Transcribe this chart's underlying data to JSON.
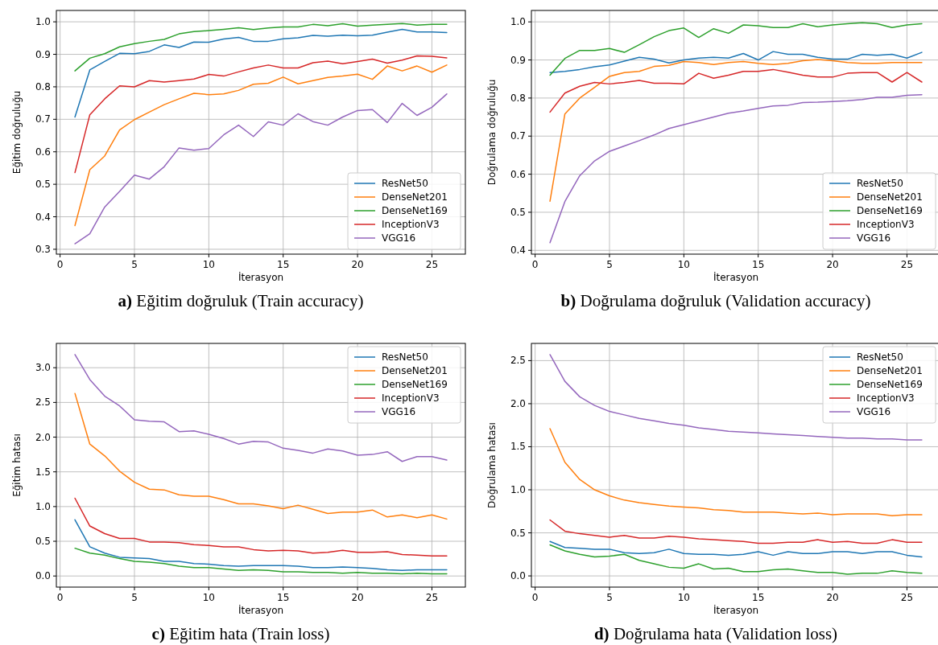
{
  "chart_data": [
    {
      "type": "line",
      "ylabel": "Eğitim doğruluğu",
      "xlabel": "İterasyon",
      "annotations": [
        "a) Eğitim doğruluk (Train accuracy)"
      ],
      "x": [
        1,
        2,
        3,
        4,
        5,
        6,
        7,
        8,
        9,
        10,
        11,
        12,
        13,
        14,
        15,
        16,
        17,
        18,
        19,
        20,
        21,
        22,
        23,
        24,
        25,
        26
      ],
      "xlim": [
        -0.25,
        27.25
      ],
      "xticks": [
        0,
        5,
        10,
        15,
        20,
        25
      ],
      "ylim": [
        0.285,
        1.035
      ],
      "yticks": [
        0.3,
        0.4,
        0.5,
        0.6,
        0.7,
        0.8,
        0.9,
        {
          "value": 1,
          "label": "1.0"
        }
      ],
      "grid": true,
      "legend": "bottom right",
      "line_style": "solid",
      "series": [
        {
          "name": "ResNet50",
          "color": "#1f77b4",
          "values": [
            0.707,
            0.852,
            0.878,
            0.903,
            0.902,
            0.909,
            0.929,
            0.921,
            0.938,
            0.937,
            0.947,
            0.952,
            0.94,
            0.94,
            0.948,
            0.951,
            0.958,
            0.956,
            0.959,
            0.957,
            0.959,
            0.968,
            0.977,
            0.969,
            0.969,
            0.967
          ]
        },
        {
          "name": "DenseNet201",
          "color": "#ff7f0e",
          "values": [
            0.373,
            0.545,
            0.587,
            0.667,
            0.699,
            0.722,
            0.745,
            0.763,
            0.78,
            0.776,
            0.778,
            0.789,
            0.808,
            0.811,
            0.83,
            0.809,
            0.819,
            0.829,
            0.833,
            0.839,
            0.823,
            0.864,
            0.849,
            0.864,
            0.845,
            0.867
          ]
        },
        {
          "name": "DenseNet169",
          "color": "#2ca02c",
          "values": [
            0.849,
            0.888,
            0.902,
            0.923,
            0.933,
            0.94,
            0.946,
            0.963,
            0.97,
            0.973,
            0.977,
            0.982,
            0.976,
            0.981,
            0.984,
            0.984,
            0.992,
            0.988,
            0.994,
            0.987,
            0.99,
            0.992,
            0.995,
            0.99,
            0.992,
            0.992
          ]
        },
        {
          "name": "InceptionV3",
          "color": "#d62728",
          "values": [
            0.536,
            0.714,
            0.763,
            0.803,
            0.8,
            0.819,
            0.815,
            0.819,
            0.824,
            0.838,
            0.833,
            0.846,
            0.858,
            0.867,
            0.858,
            0.858,
            0.874,
            0.879,
            0.871,
            0.878,
            0.885,
            0.873,
            0.882,
            0.895,
            0.894,
            0.889
          ]
        },
        {
          "name": "VGG16",
          "color": "#9467bd",
          "values": [
            0.317,
            0.348,
            0.43,
            0.478,
            0.528,
            0.516,
            0.554,
            0.612,
            0.605,
            0.61,
            0.652,
            0.682,
            0.647,
            0.692,
            0.682,
            0.717,
            0.693,
            0.682,
            0.707,
            0.727,
            0.73,
            0.69,
            0.749,
            0.712,
            0.737,
            0.778
          ]
        }
      ]
    },
    {
      "type": "line",
      "ylabel": "Doğrulama doğruluğu",
      "xlabel": "İterasyon",
      "annotations": [
        "b) Doğrulama doğruluk (Validation accuracy)"
      ],
      "x": [
        1,
        2,
        3,
        4,
        5,
        6,
        7,
        8,
        9,
        10,
        11,
        12,
        13,
        14,
        15,
        16,
        17,
        18,
        19,
        20,
        21,
        22,
        23,
        24,
        25,
        26
      ],
      "xlim": [
        -0.25,
        27.25
      ],
      "xticks": [
        0,
        5,
        10,
        15,
        20,
        25
      ],
      "ylim": [
        0.39,
        1.03
      ],
      "yticks": [
        0.4,
        0.5,
        0.6,
        0.7,
        0.8,
        0.9,
        {
          "value": 1,
          "label": "1.0"
        }
      ],
      "grid": true,
      "legend": "bottom right",
      "line_style": "solid",
      "series": [
        {
          "name": "ResNet50",
          "color": "#1f77b4",
          "values": [
            0.867,
            0.87,
            0.875,
            0.882,
            0.887,
            0.897,
            0.907,
            0.902,
            0.892,
            0.9,
            0.905,
            0.907,
            0.905,
            0.917,
            0.9,
            0.922,
            0.915,
            0.915,
            0.907,
            0.902,
            0.902,
            0.915,
            0.912,
            0.915,
            0.905,
            0.92
          ]
        },
        {
          "name": "DenseNet201",
          "color": "#ff7f0e",
          "values": [
            0.529,
            0.758,
            0.8,
            0.828,
            0.857,
            0.867,
            0.87,
            0.883,
            0.886,
            0.896,
            0.893,
            0.888,
            0.893,
            0.896,
            0.891,
            0.888,
            0.891,
            0.898,
            0.901,
            0.898,
            0.893,
            0.891,
            0.891,
            0.893,
            0.893,
            0.893
          ]
        },
        {
          "name": "DenseNet169",
          "color": "#2ca02c",
          "values": [
            0.86,
            0.904,
            0.925,
            0.925,
            0.93,
            0.92,
            0.94,
            0.961,
            0.977,
            0.984,
            0.959,
            0.982,
            0.97,
            0.992,
            0.99,
            0.985,
            0.985,
            0.995,
            0.987,
            0.992,
            0.995,
            0.998,
            0.995,
            0.985,
            0.992,
            0.995
          ]
        },
        {
          "name": "InceptionV3",
          "color": "#d62728",
          "values": [
            0.763,
            0.813,
            0.831,
            0.841,
            0.837,
            0.841,
            0.846,
            0.839,
            0.839,
            0.837,
            0.865,
            0.852,
            0.86,
            0.87,
            0.87,
            0.875,
            0.868,
            0.86,
            0.855,
            0.855,
            0.865,
            0.867,
            0.867,
            0.842,
            0.867,
            0.842
          ]
        },
        {
          "name": "VGG16",
          "color": "#9467bd",
          "values": [
            0.42,
            0.528,
            0.596,
            0.635,
            0.66,
            0.674,
            0.688,
            0.703,
            0.72,
            0.73,
            0.74,
            0.75,
            0.76,
            0.766,
            0.773,
            0.779,
            0.781,
            0.788,
            0.789,
            0.791,
            0.793,
            0.796,
            0.802,
            0.802,
            0.807,
            0.809
          ]
        }
      ]
    },
    {
      "type": "line",
      "ylabel": "Eğitim hatası",
      "xlabel": "İterasyon",
      "annotations": [
        "c) Eğitim hata (Train loss)"
      ],
      "x": [
        1,
        2,
        3,
        4,
        5,
        6,
        7,
        8,
        9,
        10,
        11,
        12,
        13,
        14,
        15,
        16,
        17,
        18,
        19,
        20,
        21,
        22,
        23,
        24,
        25,
        26
      ],
      "xlim": [
        -0.25,
        27.25
      ],
      "xticks": [
        0,
        5,
        10,
        15,
        20,
        25
      ],
      "ylim": [
        -0.16,
        3.35
      ],
      "yticks": [
        {
          "value": 0,
          "label": "0.0"
        },
        0.5,
        {
          "value": 1,
          "label": "1.0"
        },
        1.5,
        {
          "value": 2,
          "label": "2.0"
        },
        2.5,
        {
          "value": 3,
          "label": "3.0"
        }
      ],
      "grid": true,
      "legend": "top right",
      "line_style": "solid",
      "series": [
        {
          "name": "ResNet50",
          "color": "#1f77b4",
          "values": [
            0.81,
            0.42,
            0.33,
            0.27,
            0.26,
            0.25,
            0.21,
            0.21,
            0.18,
            0.17,
            0.15,
            0.14,
            0.15,
            0.15,
            0.15,
            0.14,
            0.12,
            0.12,
            0.13,
            0.12,
            0.11,
            0.09,
            0.08,
            0.09,
            0.09,
            0.09
          ]
        },
        {
          "name": "DenseNet201",
          "color": "#ff7f0e",
          "values": [
            2.63,
            1.9,
            1.73,
            1.51,
            1.35,
            1.25,
            1.24,
            1.17,
            1.15,
            1.15,
            1.1,
            1.04,
            1.04,
            1.01,
            0.97,
            1.02,
            0.96,
            0.9,
            0.92,
            0.92,
            0.95,
            0.85,
            0.88,
            0.84,
            0.88,
            0.82
          ]
        },
        {
          "name": "DenseNet169",
          "color": "#2ca02c",
          "values": [
            0.4,
            0.33,
            0.3,
            0.25,
            0.21,
            0.2,
            0.18,
            0.14,
            0.12,
            0.12,
            0.1,
            0.08,
            0.09,
            0.08,
            0.06,
            0.06,
            0.05,
            0.05,
            0.04,
            0.05,
            0.04,
            0.04,
            0.03,
            0.04,
            0.03,
            0.03
          ]
        },
        {
          "name": "InceptionV3",
          "color": "#d62728",
          "values": [
            1.12,
            0.72,
            0.61,
            0.54,
            0.54,
            0.49,
            0.49,
            0.48,
            0.45,
            0.44,
            0.42,
            0.42,
            0.38,
            0.36,
            0.37,
            0.36,
            0.33,
            0.34,
            0.37,
            0.34,
            0.34,
            0.35,
            0.31,
            0.3,
            0.29,
            0.29
          ]
        },
        {
          "name": "VGG16",
          "color": "#9467bd",
          "values": [
            3.19,
            2.83,
            2.59,
            2.45,
            2.25,
            2.23,
            2.22,
            2.08,
            2.09,
            2.04,
            1.98,
            1.9,
            1.94,
            1.93,
            1.84,
            1.81,
            1.77,
            1.83,
            1.8,
            1.74,
            1.75,
            1.79,
            1.65,
            1.72,
            1.72,
            1.67
          ]
        }
      ]
    },
    {
      "type": "line",
      "ylabel": "Doğrulama hatası",
      "xlabel": "İterasyon",
      "annotations": [
        "d) Doğrulama hata (Validation loss)"
      ],
      "x": [
        1,
        2,
        3,
        4,
        5,
        6,
        7,
        8,
        9,
        10,
        11,
        12,
        13,
        14,
        15,
        16,
        17,
        18,
        19,
        20,
        21,
        22,
        23,
        24,
        25,
        26
      ],
      "xlim": [
        -0.25,
        27.25
      ],
      "xticks": [
        0,
        5,
        10,
        15,
        20,
        25
      ],
      "ylim": [
        -0.13,
        2.7
      ],
      "yticks": [
        {
          "value": 0,
          "label": "0.0"
        },
        0.5,
        {
          "value": 1,
          "label": "1.0"
        },
        1.5,
        {
          "value": 2,
          "label": "2.0"
        },
        2.5
      ],
      "grid": true,
      "legend": "top right",
      "line_style": "solid",
      "series": [
        {
          "name": "ResNet50",
          "color": "#1f77b4",
          "values": [
            0.4,
            0.33,
            0.32,
            0.31,
            0.31,
            0.27,
            0.26,
            0.27,
            0.31,
            0.26,
            0.25,
            0.25,
            0.24,
            0.25,
            0.28,
            0.24,
            0.28,
            0.26,
            0.26,
            0.28,
            0.28,
            0.26,
            0.28,
            0.28,
            0.24,
            0.22
          ]
        },
        {
          "name": "DenseNet201",
          "color": "#ff7f0e",
          "values": [
            1.71,
            1.32,
            1.12,
            1.0,
            0.93,
            0.88,
            0.85,
            0.83,
            0.81,
            0.8,
            0.79,
            0.77,
            0.76,
            0.74,
            0.74,
            0.74,
            0.73,
            0.72,
            0.73,
            0.71,
            0.72,
            0.72,
            0.72,
            0.7,
            0.71,
            0.71
          ]
        },
        {
          "name": "DenseNet169",
          "color": "#2ca02c",
          "values": [
            0.36,
            0.29,
            0.25,
            0.22,
            0.23,
            0.25,
            0.18,
            0.14,
            0.1,
            0.09,
            0.14,
            0.08,
            0.09,
            0.05,
            0.05,
            0.07,
            0.08,
            0.06,
            0.04,
            0.04,
            0.02,
            0.03,
            0.03,
            0.06,
            0.04,
            0.03
          ]
        },
        {
          "name": "InceptionV3",
          "color": "#d62728",
          "values": [
            0.65,
            0.52,
            0.49,
            0.47,
            0.45,
            0.47,
            0.44,
            0.44,
            0.46,
            0.45,
            0.43,
            0.42,
            0.41,
            0.4,
            0.38,
            0.38,
            0.39,
            0.39,
            0.42,
            0.39,
            0.4,
            0.38,
            0.38,
            0.42,
            0.39,
            0.39
          ]
        },
        {
          "name": "VGG16",
          "color": "#9467bd",
          "values": [
            2.57,
            2.26,
            2.08,
            1.98,
            1.91,
            1.87,
            1.83,
            1.8,
            1.77,
            1.75,
            1.72,
            1.7,
            1.68,
            1.67,
            1.66,
            1.65,
            1.64,
            1.63,
            1.62,
            1.61,
            1.6,
            1.6,
            1.59,
            1.59,
            1.58,
            1.58
          ]
        }
      ]
    }
  ]
}
